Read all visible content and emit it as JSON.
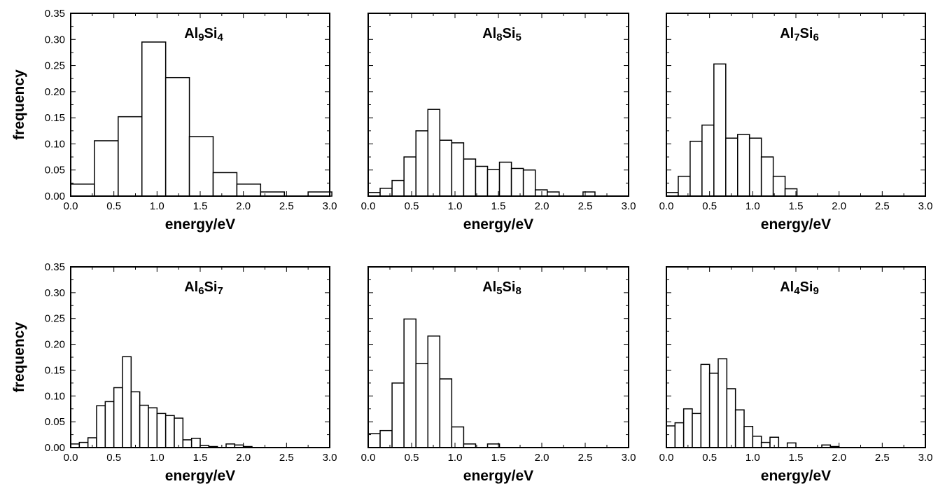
{
  "chart_data": [
    {
      "type": "bar",
      "title": {
        "a": "Al",
        "a_sub": "9",
        "b": "Si",
        "b_sub": "4"
      },
      "xlabel": "energy/eV",
      "ylabel": "frequency",
      "xlim": [
        0,
        3.0
      ],
      "ylim": [
        0,
        0.35
      ],
      "bin_width": 0.275,
      "x": [
        0.0,
        0.275,
        0.55,
        0.825,
        1.1,
        1.375,
        1.65,
        1.925,
        2.2,
        2.475,
        2.75
      ],
      "values": [
        0.023,
        0.106,
        0.152,
        0.295,
        0.227,
        0.114,
        0.045,
        0.023,
        0.008,
        0.0,
        0.008
      ]
    },
    {
      "type": "bar",
      "title": {
        "a": "Al",
        "a_sub": "8",
        "b": "Si",
        "b_sub": "5"
      },
      "xlabel": "energy/eV",
      "ylabel": "",
      "xlim": [
        0,
        3.0
      ],
      "ylim": [
        0,
        0.35
      ],
      "bin_width": 0.1375,
      "x": [
        0.0,
        0.1375,
        0.275,
        0.4125,
        0.55,
        0.6875,
        0.825,
        0.9625,
        1.1,
        1.2375,
        1.375,
        1.5125,
        1.65,
        1.7875,
        1.925,
        2.0625,
        2.2,
        2.3375,
        2.475,
        2.6125,
        2.75
      ],
      "values": [
        0.007,
        0.015,
        0.03,
        0.075,
        0.125,
        0.166,
        0.107,
        0.102,
        0.071,
        0.057,
        0.051,
        0.065,
        0.053,
        0.05,
        0.012,
        0.008,
        0.0,
        0.0,
        0.008,
        0.0,
        0.0
      ]
    },
    {
      "type": "bar",
      "title": {
        "a": "Al",
        "a_sub": "7",
        "b": "Si",
        "b_sub": "6"
      },
      "xlabel": "energy/eV",
      "ylabel": "",
      "xlim": [
        0,
        3.0
      ],
      "ylim": [
        0,
        0.35
      ],
      "bin_width": 0.1375,
      "x": [
        0.0,
        0.1375,
        0.275,
        0.4125,
        0.55,
        0.6875,
        0.825,
        0.9625,
        1.1,
        1.2375,
        1.375,
        1.5125,
        1.65,
        1.7875
      ],
      "values": [
        0.007,
        0.038,
        0.105,
        0.136,
        0.253,
        0.111,
        0.118,
        0.111,
        0.075,
        0.038,
        0.014,
        0.0,
        0.0,
        0.0
      ]
    },
    {
      "type": "bar",
      "title": {
        "a": "Al",
        "a_sub": "6",
        "b": "Si",
        "b_sub": "7"
      },
      "xlabel": "energy/eV",
      "ylabel": "frequency",
      "xlim": [
        0,
        3.0
      ],
      "ylim": [
        0,
        0.35
      ],
      "bin_width": 0.1,
      "x": [
        0.0,
        0.1,
        0.2,
        0.3,
        0.4,
        0.5,
        0.6,
        0.7,
        0.8,
        0.9,
        1.0,
        1.1,
        1.2,
        1.3,
        1.4,
        1.5,
        1.6,
        1.7,
        1.8,
        1.9,
        2.0
      ],
      "values": [
        0.007,
        0.01,
        0.019,
        0.081,
        0.089,
        0.116,
        0.176,
        0.108,
        0.082,
        0.077,
        0.066,
        0.062,
        0.057,
        0.015,
        0.018,
        0.004,
        0.002,
        0.0,
        0.007,
        0.005,
        0.002
      ]
    },
    {
      "type": "bar",
      "title": {
        "a": "Al",
        "a_sub": "5",
        "b": "Si",
        "b_sub": "8"
      },
      "xlabel": "energy/eV",
      "ylabel": "",
      "xlim": [
        0,
        3.0
      ],
      "ylim": [
        0,
        0.35
      ],
      "bin_width": 0.1375,
      "x": [
        0.0,
        0.1375,
        0.275,
        0.4125,
        0.55,
        0.6875,
        0.825,
        0.9625,
        1.1,
        1.2375,
        1.375
      ],
      "values": [
        0.027,
        0.033,
        0.125,
        0.249,
        0.163,
        0.216,
        0.133,
        0.04,
        0.007,
        0.0,
        0.007
      ]
    },
    {
      "type": "bar",
      "title": {
        "a": "Al",
        "a_sub": "4",
        "b": "Si",
        "b_sub": "9"
      },
      "xlabel": "energy/eV",
      "ylabel": "",
      "xlim": [
        0,
        3.0
      ],
      "ylim": [
        0,
        0.35
      ],
      "bin_width": 0.1,
      "x": [
        0.0,
        0.1,
        0.2,
        0.3,
        0.4,
        0.5,
        0.6,
        0.7,
        0.8,
        0.9,
        1.0,
        1.1,
        1.2,
        1.3,
        1.4,
        1.5,
        1.6,
        1.7,
        1.8,
        1.9
      ],
      "values": [
        0.042,
        0.048,
        0.075,
        0.066,
        0.161,
        0.144,
        0.172,
        0.114,
        0.073,
        0.041,
        0.022,
        0.01,
        0.02,
        0.0,
        0.009,
        0.0,
        0.0,
        0.0,
        0.005,
        0.002
      ]
    }
  ],
  "x_ticks": [
    "0.0",
    "0.5",
    "1.0",
    "1.5",
    "2.0",
    "2.5",
    "3.0"
  ],
  "y_ticks": [
    "0.00",
    "0.05",
    "0.10",
    "0.15",
    "0.20",
    "0.25",
    "0.30",
    "0.35"
  ]
}
